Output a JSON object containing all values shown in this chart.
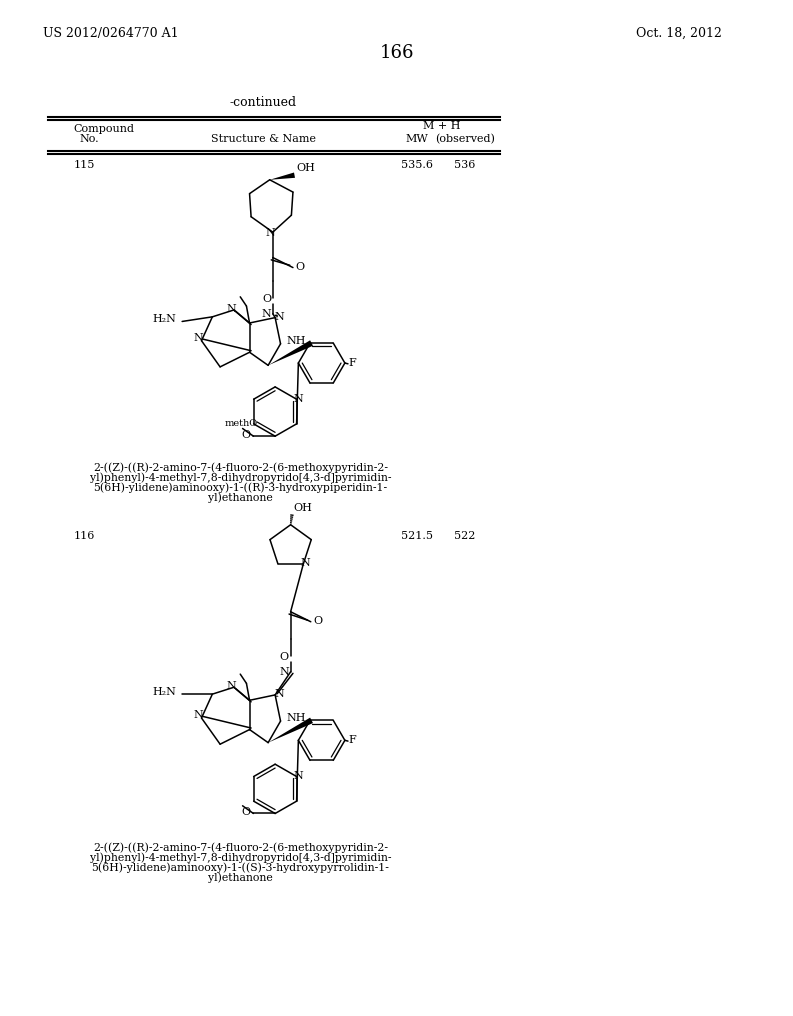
{
  "page_number": "166",
  "patent_left": "US 2012/0264770 A1",
  "patent_right": "Oct. 18, 2012",
  "continued_label": "-continued",
  "compounds": [
    {
      "number": "115",
      "mw": "535.6",
      "mh": "536",
      "name_lines": [
        "2-((Z)-((R)-2-amino-7-(4-fluoro-2-(6-methoxypyridin-2-",
        "yl)phenyl)-4-methyl-7,8-dihydropyrido[4,3-d]pyrimidin-",
        "5(6H)-ylidene)aminooxy)-1-((R)-3-hydroxypiperidin-1-",
        "yl)ethanone"
      ]
    },
    {
      "number": "116",
      "mw": "521.5",
      "mh": "522",
      "name_lines": [
        "2-((Z)-((R)-2-amino-7-(4-fluoro-2-(6-methoxypyridin-2-",
        "yl)phenyl)-4-methyl-7,8-dihydropyrido[4,3-d]pyrimidin-",
        "5(6H)-ylidene)aminooxy)-1-((S)-3-hydroxypyrrolidin-1-",
        "yl)ethanone"
      ]
    }
  ]
}
